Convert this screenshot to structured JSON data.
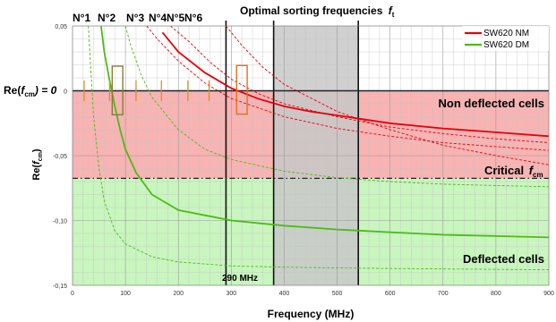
{
  "chart_data": {
    "type": "line",
    "title": "Optimal sorting frequencies",
    "title_symbol": "f",
    "title_subscript": "t",
    "xlabel": "Frequency (MHz)",
    "ylabel_main": "Re(",
    "ylabel_sym": "f",
    "ylabel_sub": "cm",
    "ylabel_end": ")",
    "xlim": [
      0,
      900
    ],
    "ylim": [
      -0.15,
      0.05
    ],
    "x_ticks": [
      0,
      100,
      200,
      300,
      400,
      500,
      600,
      700,
      800,
      900
    ],
    "y_ticks": [
      {
        "value": 0.05,
        "label": "0,05"
      },
      {
        "value": 0,
        "label": "0"
      },
      {
        "value": -0.05,
        "label": "-0,05"
      },
      {
        "value": -0.1,
        "label": "-0,10"
      },
      {
        "value": -0.15,
        "label": "-0,15"
      }
    ],
    "grid": true,
    "legend_position": "top-right",
    "series": [
      {
        "name": "SW620 NM",
        "color": "#e8000b",
        "x": [
          170,
          200,
          250,
          300,
          350,
          400,
          450,
          500,
          600,
          700,
          800,
          900
        ],
        "y": [
          0.045,
          0.03,
          0.014,
          0.002,
          -0.006,
          -0.012,
          -0.016,
          -0.019,
          -0.025,
          -0.029,
          -0.032,
          -0.035
        ]
      },
      {
        "name": "SW620 DM",
        "color": "#4cbb17",
        "x": [
          54,
          60,
          70,
          80,
          90,
          100,
          120,
          150,
          200,
          300,
          400,
          500,
          600,
          700,
          800,
          900
        ],
        "y": [
          0.05,
          0.03,
          0.008,
          -0.012,
          -0.03,
          -0.045,
          -0.063,
          -0.08,
          -0.092,
          -0.1,
          -0.104,
          -0.107,
          -0.109,
          -0.111,
          -0.112,
          -0.113
        ]
      }
    ],
    "dashed_bounds": [
      {
        "series": "SW620 NM",
        "x": [
          185,
          220,
          260,
          300,
          350,
          400,
          500,
          600,
          700,
          800,
          900
        ],
        "y": [
          0.05,
          0.038,
          0.022,
          0.009,
          -0.002,
          -0.01,
          -0.02,
          -0.028,
          -0.033,
          -0.037,
          -0.04
        ]
      },
      {
        "series": "SW620 NM",
        "x": [
          140,
          160,
          200,
          250,
          300,
          400,
          500,
          600,
          700,
          800,
          900
        ],
        "y": [
          0.05,
          0.04,
          0.023,
          0.006,
          -0.006,
          -0.02,
          -0.029,
          -0.035,
          -0.04,
          -0.043,
          -0.046
        ]
      },
      {
        "series": "SW620 NM",
        "x": [
          290,
          320,
          360,
          400,
          500,
          600,
          700,
          800,
          900
        ],
        "y": [
          0.05,
          0.035,
          0.018,
          0.005,
          -0.016,
          -0.03,
          -0.042,
          -0.05,
          -0.057
        ]
      },
      {
        "series": "SW620 DM",
        "x": [
          30,
          34,
          40,
          50,
          60,
          80,
          100,
          150,
          200,
          300,
          400,
          600,
          900
        ],
        "y": [
          0.05,
          0.02,
          -0.02,
          -0.06,
          -0.085,
          -0.108,
          -0.118,
          -0.128,
          -0.132,
          -0.135,
          -0.136,
          -0.137,
          -0.138
        ]
      },
      {
        "series": "SW620 DM",
        "x": [
          100,
          110,
          130,
          150,
          200,
          250,
          300,
          400,
          500,
          600,
          700,
          800,
          900
        ],
        "y": [
          0.05,
          0.035,
          0.012,
          -0.005,
          -0.03,
          -0.045,
          -0.053,
          -0.062,
          -0.067,
          -0.07,
          -0.072,
          -0.073,
          -0.074
        ]
      }
    ],
    "regions": [
      {
        "label": "Non deflected cells",
        "y_from": -0.0675,
        "y_to": 0,
        "color": "#f8b3b3"
      },
      {
        "label": "Deflected cells",
        "y_from": -0.15,
        "y_to": -0.0675,
        "color": "#c9f5bf"
      }
    ],
    "optimal_band": {
      "x_from": 380,
      "x_to": 540,
      "color": "#c8c8c8"
    },
    "vertical_lines": [
      {
        "x": 290,
        "label": "290 MHz"
      },
      {
        "x": 380
      },
      {
        "x": 540
      }
    ],
    "critical_line": {
      "y": -0.0675,
      "label_main": "Critical",
      "label_sym": "f",
      "label_sub": "cm"
    },
    "zero_line": {
      "y": 0,
      "label_main": "Re(",
      "label_sym": "f",
      "label_sub": "cm",
      "label_end": ") = 0"
    },
    "crossing_markers": [
      {
        "label": "N°1",
        "x": 22
      },
      {
        "label": "N°2",
        "x": 70
      },
      {
        "label": "N°3",
        "x": 120
      },
      {
        "label": "N°4",
        "x": 168
      },
      {
        "label": "N°5",
        "x": 218
      },
      {
        "label": "N°6",
        "x": 258
      }
    ],
    "highlight_boxes": [
      {
        "x_from": 75,
        "x_to": 95,
        "y_from": -0.0185,
        "y_to": 0.019
      },
      {
        "x_from": 310,
        "x_to": 330,
        "y_from": -0.018,
        "y_to": 0.0195
      }
    ]
  }
}
